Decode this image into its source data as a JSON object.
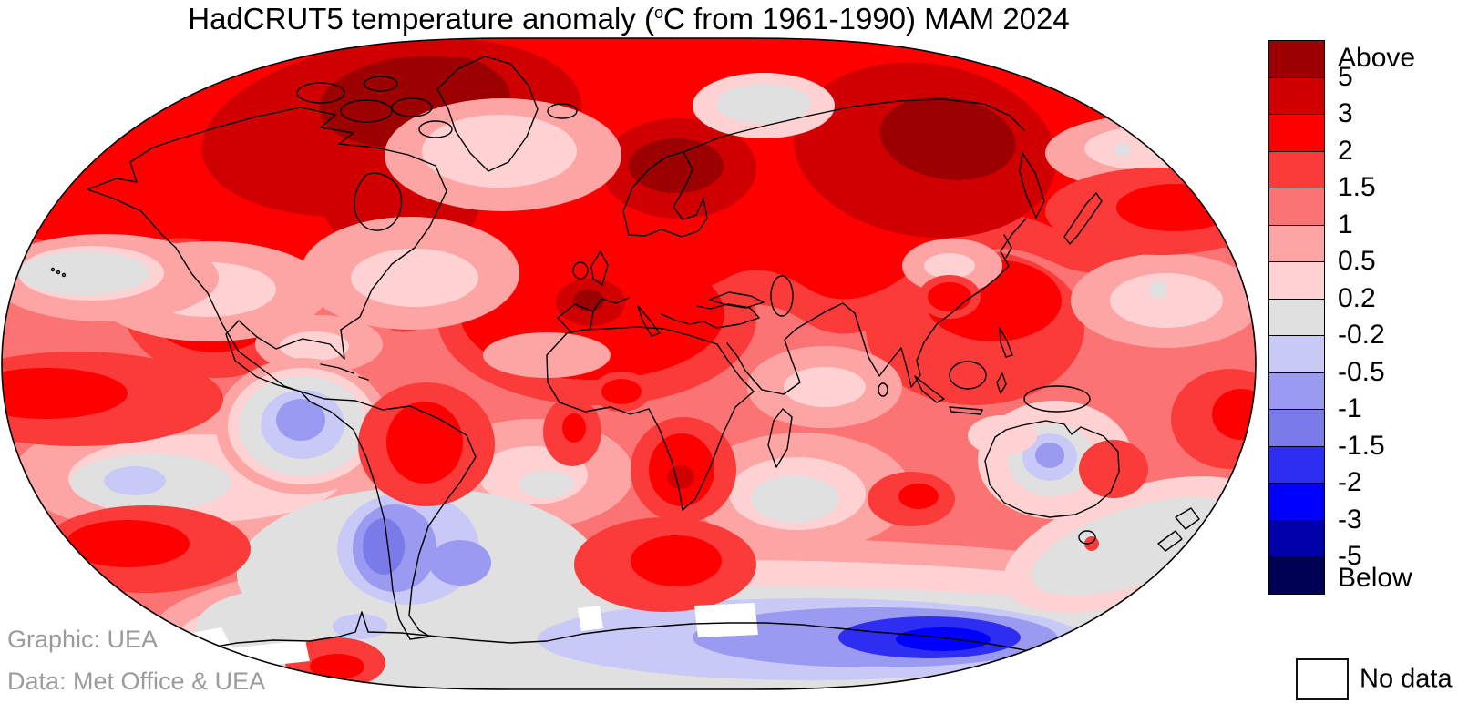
{
  "title": {
    "prefix": "HadCRUT5 temperature anomaly (",
    "degree_symbol": "o",
    "suffix": "C from 1961-1990) MAM 2024"
  },
  "credits": {
    "graphic": "Graphic: UEA",
    "data": "Data: Met Office & UEA"
  },
  "legend": {
    "labels": [
      "Above",
      "5",
      "3",
      "2",
      "1.5",
      "1",
      "0.5",
      "0.2",
      "-0.2",
      "-0.5",
      "-1",
      "-1.5",
      "-2",
      "-3",
      "-5",
      "Below"
    ],
    "bands": [
      {
        "range": "above 5",
        "color": "#9c0000"
      },
      {
        "range": "3 to 5",
        "color": "#d00000"
      },
      {
        "range": "2 to 3",
        "color": "#fe0000"
      },
      {
        "range": "1.5 to 2",
        "color": "#fb3a3a"
      },
      {
        "range": "1 to 1.5",
        "color": "#fc7373"
      },
      {
        "range": "0.5 to 1",
        "color": "#fda4a4"
      },
      {
        "range": "0.2 to 0.5",
        "color": "#fed2d2"
      },
      {
        "range": "-0.2 to 0.2",
        "color": "#e0e0e0"
      },
      {
        "range": "-0.5 to -0.2",
        "color": "#c9c9f7"
      },
      {
        "range": "-1 to -0.5",
        "color": "#9a9af1"
      },
      {
        "range": "-1.5 to -1",
        "color": "#7a7ae9"
      },
      {
        "range": "-2 to -1.5",
        "color": "#2e2ef3"
      },
      {
        "range": "-3 to -2",
        "color": "#0000fe"
      },
      {
        "range": "-5 to -3",
        "color": "#0000aa"
      },
      {
        "range": "below -5",
        "color": "#000055"
      }
    ],
    "no_data_label": "No data",
    "units_label": "C"
  }
}
